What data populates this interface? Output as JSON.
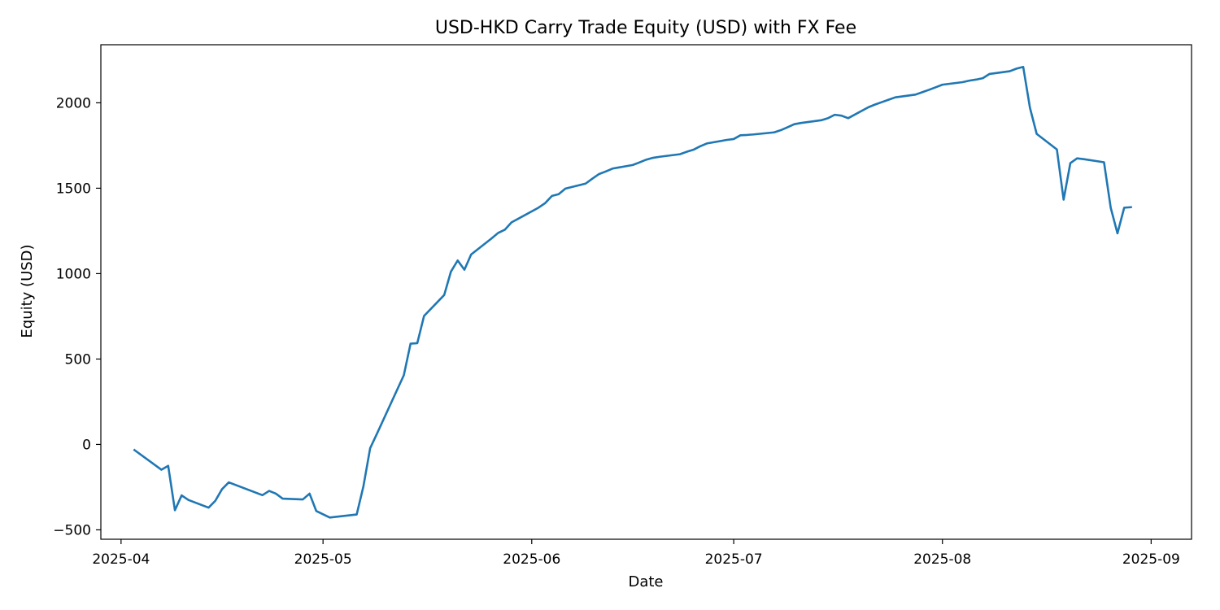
{
  "chart_data": {
    "type": "line",
    "title": "USD-HKD Carry Trade Equity (USD) with FX Fee",
    "xlabel": "Date",
    "ylabel": "Equity (USD)",
    "ylim": [
      -555,
      2340
    ],
    "xlim": [
      "2025-03-29",
      "2025-09-07"
    ],
    "grid": false,
    "x_ticks": [
      "2025-04-01",
      "2025-05-01",
      "2025-06-01",
      "2025-07-01",
      "2025-08-01",
      "2025-09-01"
    ],
    "x_tick_labels": [
      "2025-04",
      "2025-05",
      "2025-06",
      "2025-07",
      "2025-08",
      "2025-09"
    ],
    "y_ticks": [
      -500,
      0,
      500,
      1000,
      1500,
      2000
    ],
    "y_tick_labels": [
      "−500",
      "0",
      "500",
      "1000",
      "1500",
      "2000"
    ],
    "series": [
      {
        "color": "#1f77b4",
        "x": [
          "2025-04-03",
          "2025-04-07",
          "2025-04-08",
          "2025-04-09",
          "2025-04-10",
          "2025-04-11",
          "2025-04-14",
          "2025-04-15",
          "2025-04-16",
          "2025-04-17",
          "2025-04-22",
          "2025-04-23",
          "2025-04-24",
          "2025-04-25",
          "2025-04-28",
          "2025-04-29",
          "2025-04-30",
          "2025-05-02",
          "2025-05-06",
          "2025-05-07",
          "2025-05-08",
          "2025-05-09",
          "2025-05-13",
          "2025-05-14",
          "2025-05-15",
          "2025-05-16",
          "2025-05-19",
          "2025-05-20",
          "2025-05-21",
          "2025-05-22",
          "2025-05-23",
          "2025-05-26",
          "2025-05-27",
          "2025-05-28",
          "2025-05-29",
          "2025-06-02",
          "2025-06-03",
          "2025-06-04",
          "2025-06-05",
          "2025-06-06",
          "2025-06-09",
          "2025-06-10",
          "2025-06-11",
          "2025-06-12",
          "2025-06-13",
          "2025-06-16",
          "2025-06-17",
          "2025-06-18",
          "2025-06-19",
          "2025-06-20",
          "2025-06-23",
          "2025-06-24",
          "2025-06-25",
          "2025-06-26",
          "2025-06-27",
          "2025-06-30",
          "2025-07-01",
          "2025-07-02",
          "2025-07-03",
          "2025-07-04",
          "2025-07-07",
          "2025-07-08",
          "2025-07-09",
          "2025-07-10",
          "2025-07-11",
          "2025-07-14",
          "2025-07-15",
          "2025-07-16",
          "2025-07-17",
          "2025-07-18",
          "2025-07-21",
          "2025-07-22",
          "2025-07-23",
          "2025-07-24",
          "2025-07-25",
          "2025-07-28",
          "2025-07-29",
          "2025-07-30",
          "2025-07-31",
          "2025-08-01",
          "2025-08-04",
          "2025-08-05",
          "2025-08-06",
          "2025-08-07",
          "2025-08-08",
          "2025-08-11",
          "2025-08-12",
          "2025-08-13",
          "2025-08-14",
          "2025-08-15",
          "2025-08-18",
          "2025-08-19",
          "2025-08-20",
          "2025-08-21",
          "2025-08-22",
          "2025-08-25",
          "2025-08-26",
          "2025-08-27",
          "2025-08-28",
          "2025-08-29"
        ],
        "y": [
          -33,
          -148,
          -125,
          -385,
          -298,
          -325,
          -370,
          -330,
          -262,
          -222,
          -297,
          -272,
          -288,
          -317,
          -322,
          -288,
          -390,
          -428,
          -410,
          -245,
          -22,
          62,
          405,
          590,
          593,
          752,
          875,
          1012,
          1077,
          1023,
          1112,
          1205,
          1238,
          1257,
          1300,
          1386,
          1413,
          1455,
          1465,
          1498,
          1527,
          1556,
          1583,
          1598,
          1615,
          1636,
          1651,
          1667,
          1678,
          1684,
          1699,
          1713,
          1725,
          1745,
          1762,
          1783,
          1788,
          1810,
          1812,
          1815,
          1827,
          1840,
          1857,
          1875,
          1882,
          1898,
          1910,
          1930,
          1925,
          1910,
          1974,
          1990,
          2004,
          2018,
          2032,
          2048,
          2062,
          2076,
          2091,
          2106,
          2121,
          2130,
          2136,
          2144,
          2169,
          2185,
          2200,
          2210,
          1971,
          1818,
          1727,
          1433,
          1647,
          1675,
          1670,
          1652,
          1385,
          1236,
          1386,
          1389
        ]
      }
    ]
  }
}
